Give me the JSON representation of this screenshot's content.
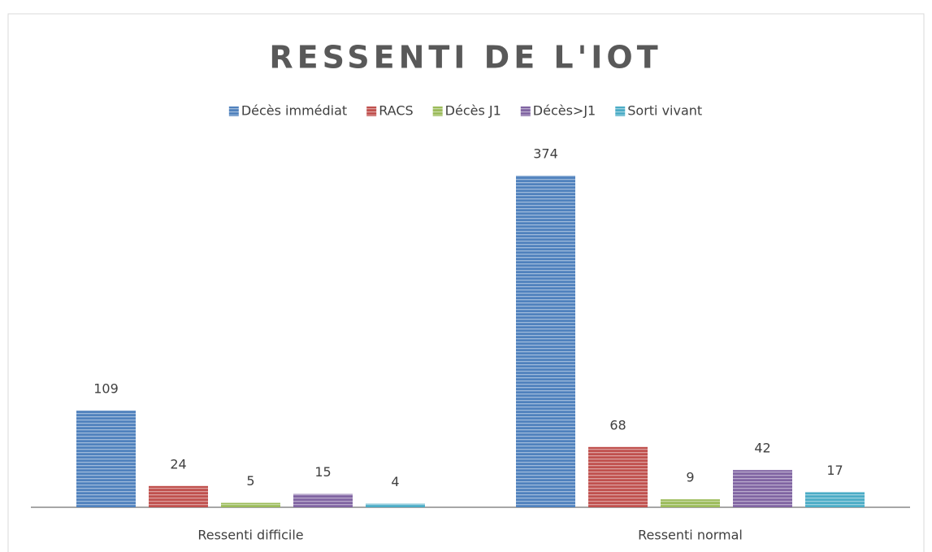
{
  "chart_data": {
    "type": "bar",
    "title": "RESSENTI DE L'IOT",
    "categories": [
      "Ressenti difficile",
      "Ressenti normal"
    ],
    "series": [
      {
        "name": "Décès immédiat",
        "color": "#4f81bd",
        "values": [
          109,
          374
        ]
      },
      {
        "name": "RACS",
        "color": "#c0504d",
        "values": [
          24,
          68
        ]
      },
      {
        "name": "Décès J1",
        "color": "#9bbb59",
        "values": [
          5,
          9
        ]
      },
      {
        "name": "Décès>J1",
        "color": "#8064a2",
        "values": [
          15,
          42
        ]
      },
      {
        "name": "Sorti vivant",
        "color": "#4bacc6",
        "values": [
          4,
          17
        ]
      }
    ],
    "legend": "top"
  }
}
